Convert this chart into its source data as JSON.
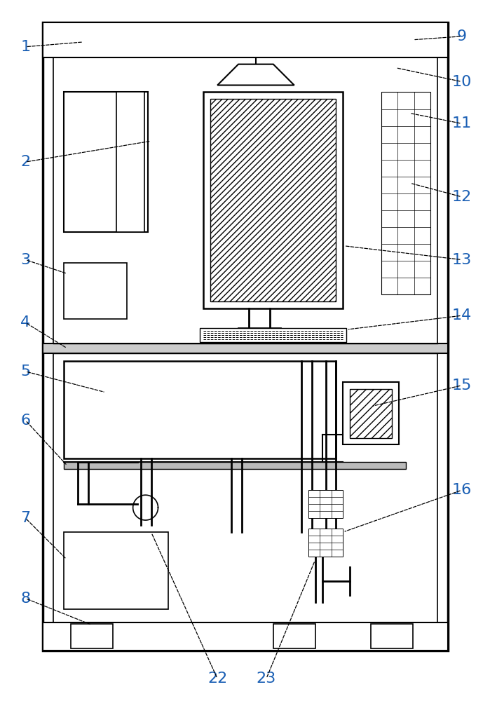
{
  "fig_width": 6.99,
  "fig_height": 10.0,
  "dpi": 100,
  "bg_color": "#ffffff",
  "lc": "#000000",
  "num_color": "#1a5fb4",
  "annotation_color": "#000000"
}
